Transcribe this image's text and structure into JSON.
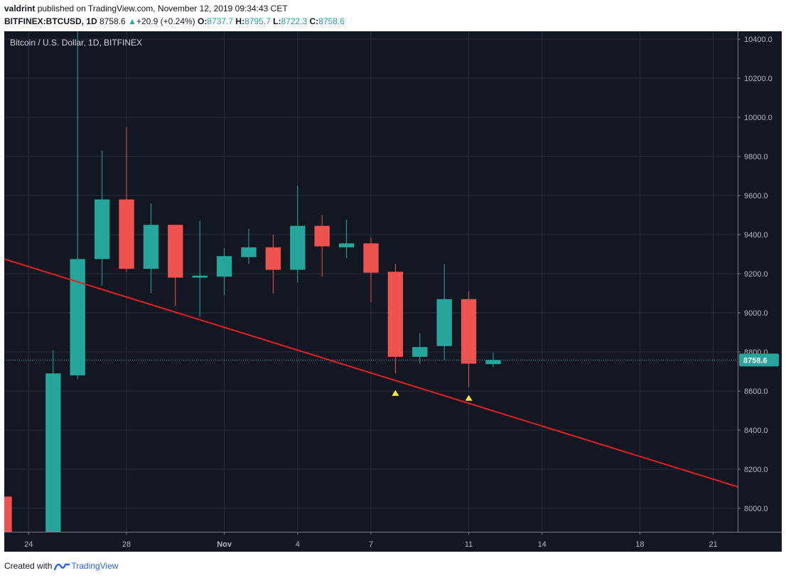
{
  "header": {
    "author": "valdrint",
    "published_text": "published on TradingView.com, November 12, 2019 09:34:43 CET",
    "symbol": "BITFINEX:BTCUSD, 1D",
    "last": "8758.6",
    "change": "+20.9 (+0.24%)",
    "o_label": "O:",
    "o_value": "8737.7",
    "h_label": "H:",
    "h_value": "8795.7",
    "l_label": "L:",
    "l_value": "8722.3",
    "c_label": "C:",
    "c_value": "8758.6"
  },
  "footer": {
    "created_with": "Created with",
    "brand": "TradingView"
  },
  "colors": {
    "background": "#131722",
    "up": "#26a69a",
    "down": "#ef5350",
    "trendline": "#e31e24",
    "marker": "#ffeb3b",
    "grid": "#2a2e39",
    "axis_text": "#b2b5be",
    "last_price_bg": "#26a69a"
  },
  "chart_data": {
    "type": "candlestick",
    "title": "Bitcoin / U.S. Dollar, 1D, BITFINEX",
    "y_range": [
      7880,
      10440
    ],
    "y_ticks": [
      "8000.0",
      "8200.0",
      "8400.0",
      "8600.0",
      "8800.0",
      "9000.0",
      "9200.0",
      "9400.0",
      "9600.0",
      "9800.0",
      "10000.0",
      "10200.0",
      "10400.0"
    ],
    "x_range": [
      "2019-10-23",
      "2019-11-22"
    ],
    "x_ticks": [
      {
        "date": "2019-10-24",
        "label": "24"
      },
      {
        "date": "2019-10-28",
        "label": "28"
      },
      {
        "date": "2019-11-01",
        "label": "Nov"
      },
      {
        "date": "2019-11-04",
        "label": "4"
      },
      {
        "date": "2019-11-07",
        "label": "7"
      },
      {
        "date": "2019-11-11",
        "label": "11"
      },
      {
        "date": "2019-11-14",
        "label": "14"
      },
      {
        "date": "2019-11-18",
        "label": "18"
      },
      {
        "date": "2019-11-21",
        "label": "21"
      }
    ],
    "last_price": {
      "value": 8758.6,
      "label": "8758.6"
    },
    "candles": [
      {
        "date": "2019-10-23",
        "open": 8060,
        "high": 8060,
        "low": 7880,
        "close": 7880
      },
      {
        "date": "2019-10-25",
        "open": 7880,
        "high": 8810,
        "low": 7880,
        "close": 8690
      },
      {
        "date": "2019-10-26",
        "open": 8680,
        "high": 10440,
        "low": 8660,
        "close": 9275
      },
      {
        "date": "2019-10-27",
        "open": 9275,
        "high": 9830,
        "low": 9140,
        "close": 9580
      },
      {
        "date": "2019-10-28",
        "open": 9580,
        "high": 9950,
        "low": 9210,
        "close": 9225
      },
      {
        "date": "2019-10-29",
        "open": 9225,
        "high": 9560,
        "low": 9100,
        "close": 9450
      },
      {
        "date": "2019-10-30",
        "open": 9450,
        "high": 9450,
        "low": 9035,
        "close": 9180
      },
      {
        "date": "2019-10-31",
        "open": 9180,
        "high": 9470,
        "low": 8980,
        "close": 9190
      },
      {
        "date": "2019-11-01",
        "open": 9185,
        "high": 9330,
        "low": 9090,
        "close": 9290
      },
      {
        "date": "2019-11-02",
        "open": 9285,
        "high": 9430,
        "low": 9250,
        "close": 9335
      },
      {
        "date": "2019-11-03",
        "open": 9335,
        "high": 9400,
        "low": 9100,
        "close": 9220
      },
      {
        "date": "2019-11-04",
        "open": 9220,
        "high": 9650,
        "low": 9155,
        "close": 9445
      },
      {
        "date": "2019-11-05",
        "open": 9445,
        "high": 9500,
        "low": 9185,
        "close": 9340
      },
      {
        "date": "2019-11-06",
        "open": 9335,
        "high": 9475,
        "low": 9280,
        "close": 9355
      },
      {
        "date": "2019-11-07",
        "open": 9355,
        "high": 9385,
        "low": 9055,
        "close": 9205
      },
      {
        "date": "2019-11-08",
        "open": 9210,
        "high": 9250,
        "low": 8690,
        "close": 8775
      },
      {
        "date": "2019-11-09",
        "open": 8775,
        "high": 8895,
        "low": 8740,
        "close": 8825
      },
      {
        "date": "2019-11-10",
        "open": 8830,
        "high": 9250,
        "low": 8760,
        "close": 9070
      },
      {
        "date": "2019-11-11",
        "open": 9070,
        "high": 9110,
        "low": 8620,
        "close": 8740
      },
      {
        "date": "2019-11-12",
        "open": 8737.7,
        "high": 8795.7,
        "low": 8722.3,
        "close": 8758.6
      }
    ],
    "trendline": [
      {
        "date": "2019-10-23",
        "value": 9275
      },
      {
        "date": "2019-11-22",
        "value": 8110
      }
    ],
    "markers": [
      {
        "date": "2019-11-08",
        "value": 8590,
        "shape": "triangle-up"
      },
      {
        "date": "2019-11-11",
        "value": 8565,
        "shape": "triangle-up"
      }
    ]
  }
}
